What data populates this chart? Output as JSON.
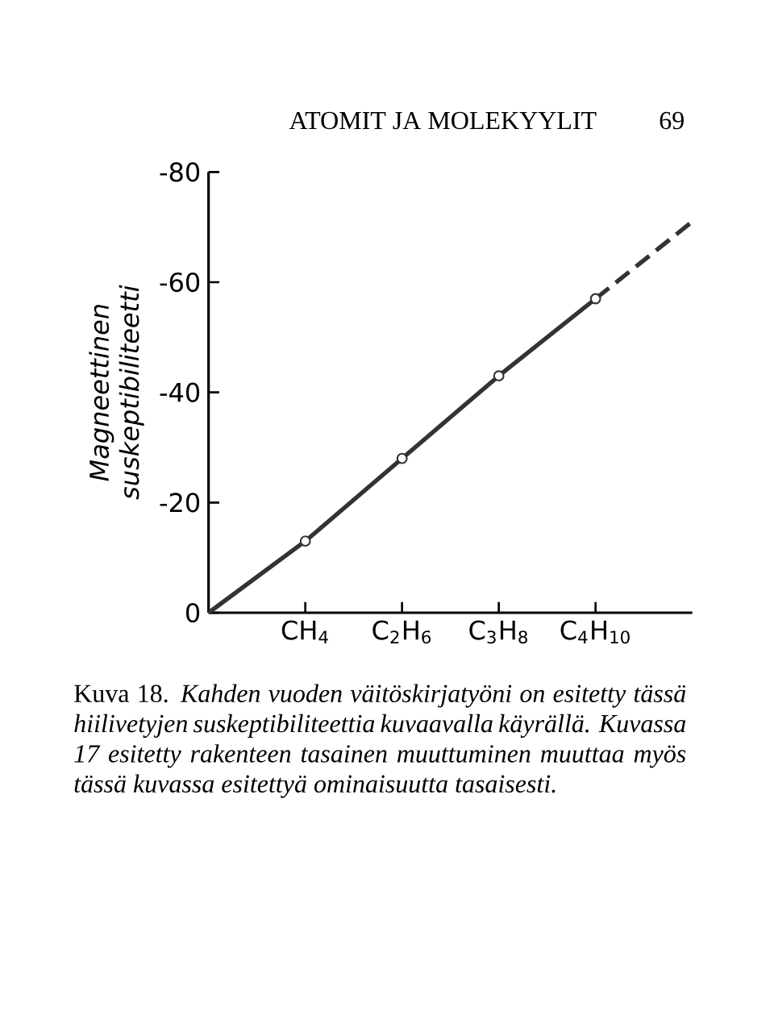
{
  "chart_data": {
    "type": "line",
    "ylabel": "Magneettinen suskeptibiliteetti",
    "categories": [
      null,
      "CH$_{4}$",
      "C$_{2}$H$_{6}$",
      "C$_{3}$H$_{8}$",
      "C$_{4}$H$_{10}$",
      null
    ],
    "ylim": [
      0,
      -80
    ],
    "yticks": [
      0,
      -20,
      -40,
      -60,
      -80
    ],
    "series": [
      {
        "color": "#333333",
        "marker": "none",
        "line_style": "solid",
        "values": [
          0,
          -13,
          -28,
          -43,
          -57,
          null
        ]
      },
      {
        "type": "scatter",
        "color": "#333333",
        "marker": "circle",
        "values": [
          null,
          -13,
          -28,
          -43,
          -57,
          null
        ]
      },
      {
        "color": "#333333",
        "marker": "none",
        "line_style": "dashed",
        "values": [
          null,
          null,
          null,
          null,
          -57,
          -71
        ]
      }
    ],
    "annotations": [
      "ATOMIT JA MOLEKYYLIT",
      "69",
      "Kuva 18. *Kahden vuoden väitöskirjatyöni on esitetty tässä hiilivetyjen suskeptibiliteettia kuvaavalla käyrällä. Kuvassa 17 esitetty rakenteen tasainen muuttuminen muuttaa myös tässä kuvassa esitettyä ominaisuutta tasaisesti.*"
    ]
  }
}
